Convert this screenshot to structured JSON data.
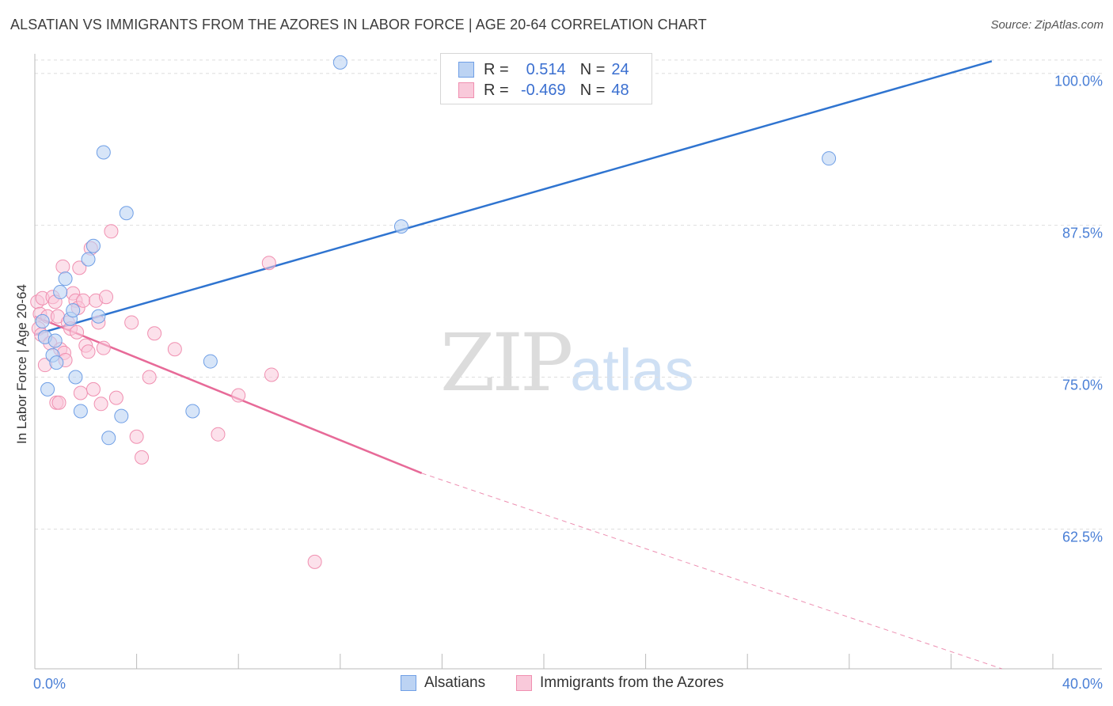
{
  "title": "ALSATIAN VS IMMIGRANTS FROM THE AZORES IN LABOR FORCE | AGE 20-64 CORRELATION CHART",
  "source": "Source: ZipAtlas.com",
  "watermark": {
    "zip": "ZIP",
    "atlas": "atlas"
  },
  "legend": {
    "r_label": "R =",
    "n_label": "N =",
    "series1": {
      "r": "0.514",
      "n": "24"
    },
    "series2": {
      "r": "-0.469",
      "n": "48"
    }
  },
  "bottom_legend": {
    "series1": "Alsatians",
    "series2": "Immigrants from the Azores"
  },
  "chart_data": {
    "type": "scatter",
    "title": "ALSATIAN VS IMMIGRANTS FROM THE AZORES IN LABOR FORCE | AGE 20-64 CORRELATION CHART",
    "xlabel": "",
    "ylabel": "In Labor Force | Age 20-64",
    "xlim": [
      0,
      40
    ],
    "ylim": [
      51,
      102
    ],
    "x_tick_labels": [
      "0.0%",
      "40.0%"
    ],
    "y_ticks": [
      62.5,
      75.0,
      87.5,
      100.0
    ],
    "y_tick_labels": [
      "62.5%",
      "75.0%",
      "87.5%",
      "100.0%"
    ],
    "grid": true,
    "colors": {
      "series1": "#6f9fe6",
      "series2": "#f08fb0",
      "line1": "#2f74d0",
      "line2": "#e76a98"
    },
    "series": [
      {
        "name": "Alsatians",
        "r": 0.514,
        "n": 24,
        "points": [
          {
            "x": 0.3,
            "y": 79.6
          },
          {
            "x": 0.4,
            "y": 78.3
          },
          {
            "x": 0.5,
            "y": 74.0
          },
          {
            "x": 0.7,
            "y": 76.8
          },
          {
            "x": 0.8,
            "y": 78.0
          },
          {
            "x": 0.85,
            "y": 76.2
          },
          {
            "x": 1.0,
            "y": 82.0
          },
          {
            "x": 1.2,
            "y": 83.1
          },
          {
            "x": 1.4,
            "y": 79.8
          },
          {
            "x": 1.5,
            "y": 80.5
          },
          {
            "x": 1.6,
            "y": 75.0
          },
          {
            "x": 1.8,
            "y": 72.2
          },
          {
            "x": 2.1,
            "y": 84.7
          },
          {
            "x": 2.3,
            "y": 85.8
          },
          {
            "x": 2.5,
            "y": 80.0
          },
          {
            "x": 2.7,
            "y": 93.5
          },
          {
            "x": 2.9,
            "y": 70.0
          },
          {
            "x": 3.4,
            "y": 71.8
          },
          {
            "x": 3.6,
            "y": 88.5
          },
          {
            "x": 6.2,
            "y": 72.2
          },
          {
            "x": 6.9,
            "y": 76.3
          },
          {
            "x": 12.0,
            "y": 100.9
          },
          {
            "x": 14.4,
            "y": 87.4
          },
          {
            "x": 31.2,
            "y": 93.0
          }
        ],
        "trend": {
          "x": [
            0,
            37.6
          ],
          "y": [
            78.5,
            101.0
          ]
        }
      },
      {
        "name": "Immigrants from the Azores",
        "r": -0.469,
        "n": 48,
        "points": [
          {
            "x": 0.1,
            "y": 81.2
          },
          {
            "x": 0.15,
            "y": 79.0
          },
          {
            "x": 0.2,
            "y": 80.2
          },
          {
            "x": 0.25,
            "y": 78.5
          },
          {
            "x": 0.3,
            "y": 81.5
          },
          {
            "x": 0.4,
            "y": 76.0
          },
          {
            "x": 0.5,
            "y": 80.0
          },
          {
            "x": 0.6,
            "y": 77.8
          },
          {
            "x": 0.7,
            "y": 81.6
          },
          {
            "x": 0.8,
            "y": 81.2
          },
          {
            "x": 0.85,
            "y": 72.9
          },
          {
            "x": 0.9,
            "y": 80.0
          },
          {
            "x": 0.95,
            "y": 72.9
          },
          {
            "x": 1.0,
            "y": 77.3
          },
          {
            "x": 1.1,
            "y": 84.1
          },
          {
            "x": 1.15,
            "y": 77.0
          },
          {
            "x": 1.2,
            "y": 76.4
          },
          {
            "x": 1.3,
            "y": 79.5
          },
          {
            "x": 1.4,
            "y": 79.0
          },
          {
            "x": 1.5,
            "y": 81.9
          },
          {
            "x": 1.6,
            "y": 81.3
          },
          {
            "x": 1.65,
            "y": 78.7
          },
          {
            "x": 1.7,
            "y": 80.7
          },
          {
            "x": 1.75,
            "y": 84.0
          },
          {
            "x": 1.8,
            "y": 73.7
          },
          {
            "x": 1.9,
            "y": 81.3
          },
          {
            "x": 2.0,
            "y": 77.6
          },
          {
            "x": 2.1,
            "y": 77.1
          },
          {
            "x": 2.2,
            "y": 85.6
          },
          {
            "x": 2.3,
            "y": 74.0
          },
          {
            "x": 2.4,
            "y": 81.3
          },
          {
            "x": 2.5,
            "y": 79.5
          },
          {
            "x": 2.6,
            "y": 72.8
          },
          {
            "x": 2.7,
            "y": 77.4
          },
          {
            "x": 2.8,
            "y": 81.6
          },
          {
            "x": 3.0,
            "y": 87.0
          },
          {
            "x": 3.2,
            "y": 73.3
          },
          {
            "x": 4.0,
            "y": 70.1
          },
          {
            "x": 4.2,
            "y": 68.4
          },
          {
            "x": 4.5,
            "y": 75.0
          },
          {
            "x": 4.7,
            "y": 78.6
          },
          {
            "x": 5.5,
            "y": 77.3
          },
          {
            "x": 7.2,
            "y": 70.3
          },
          {
            "x": 8.0,
            "y": 73.5
          },
          {
            "x": 9.2,
            "y": 84.4
          },
          {
            "x": 9.3,
            "y": 75.2
          },
          {
            "x": 11.0,
            "y": 59.8
          },
          {
            "x": 3.8,
            "y": 79.5
          }
        ],
        "trend": {
          "x": [
            0,
            15.2
          ],
          "y": [
            80.0,
            67.1
          ]
        },
        "trend_dashed": {
          "x": [
            15.2,
            38.0
          ],
          "y": [
            67.1,
            51.0
          ]
        }
      }
    ]
  }
}
